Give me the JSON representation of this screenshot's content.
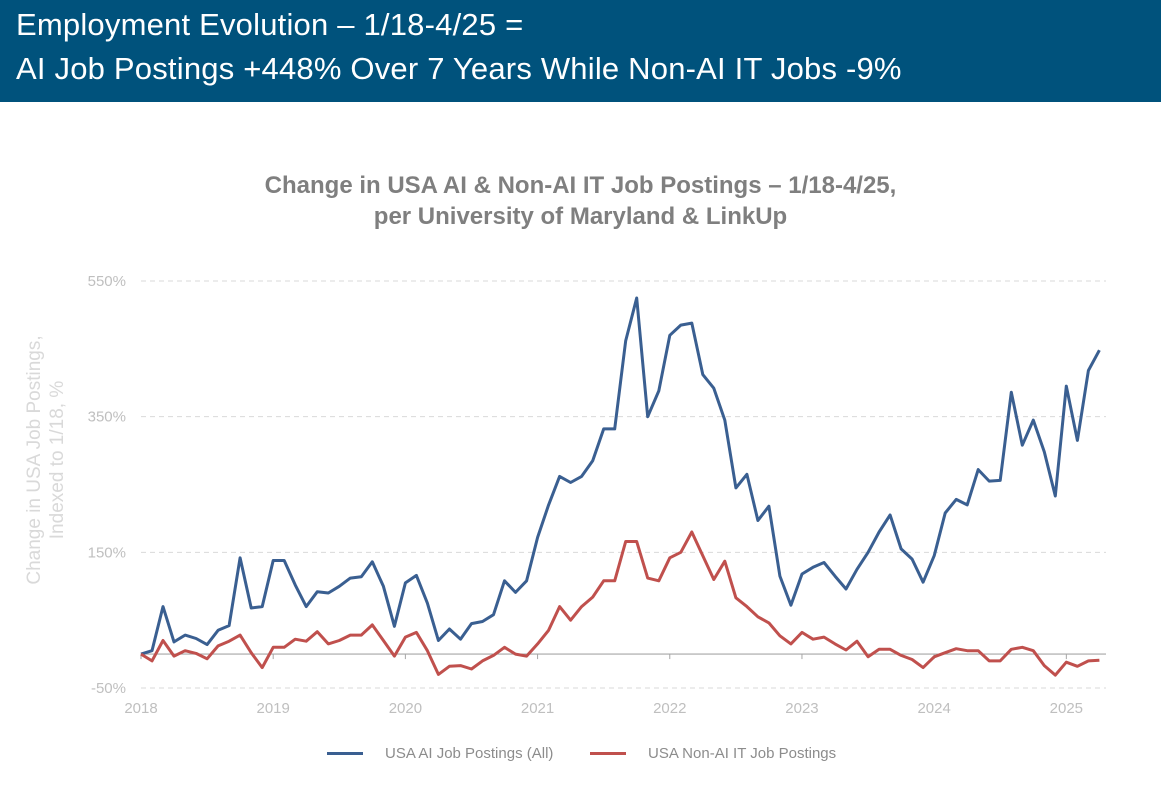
{
  "header": {
    "title_line1": "Employment Evolution – 1/18-4/25 =",
    "title_line2": "AI Job Postings +448% Over 7 Years While Non-AI IT Jobs -9%",
    "background": "#00527c"
  },
  "chart_data": {
    "type": "line",
    "title_line1": "Change in USA AI & Non-AI IT Job Postings – 1/18-4/25,",
    "title_line2": "per University of Maryland & LinkUp",
    "ylabel_line1": "Change in USA Job Postings,",
    "ylabel_line2": "Indexed to 1/18, %",
    "ylim": [
      -50,
      550
    ],
    "yticks": [
      -50,
      150,
      350,
      550
    ],
    "ytick_labels": [
      "-50%",
      "150%",
      "350%",
      "550%"
    ],
    "xticks": [
      2018,
      2019,
      2020,
      2021,
      2022,
      2023,
      2024,
      2025
    ],
    "xtick_labels": [
      "2018",
      "2019",
      "2020",
      "2021",
      "2022",
      "2023",
      "2024",
      "2025"
    ],
    "xlim": [
      2018,
      2025.3
    ],
    "grid": "horizontal dashed",
    "legend_position": "bottom",
    "series": [
      {
        "name": "USA AI Job Postings (All)",
        "color": "#3a5f91",
        "x": [
          "2018-01",
          "2018-02",
          "2018-03",
          "2018-04",
          "2018-05",
          "2018-06",
          "2018-07",
          "2018-08",
          "2018-09",
          "2018-10",
          "2018-11",
          "2018-12",
          "2019-01",
          "2019-02",
          "2019-03",
          "2019-04",
          "2019-05",
          "2019-06",
          "2019-07",
          "2019-08",
          "2019-09",
          "2019-10",
          "2019-11",
          "2019-12",
          "2020-01",
          "2020-02",
          "2020-03",
          "2020-04",
          "2020-05",
          "2020-06",
          "2020-07",
          "2020-08",
          "2020-09",
          "2020-10",
          "2020-11",
          "2020-12",
          "2021-01",
          "2021-02",
          "2021-03",
          "2021-04",
          "2021-05",
          "2021-06",
          "2021-07",
          "2021-08",
          "2021-09",
          "2021-10",
          "2021-11",
          "2021-12",
          "2022-01",
          "2022-02",
          "2022-03",
          "2022-04",
          "2022-05",
          "2022-06",
          "2022-07",
          "2022-08",
          "2022-09",
          "2022-10",
          "2022-11",
          "2022-12",
          "2023-01",
          "2023-02",
          "2023-03",
          "2023-04",
          "2023-05",
          "2023-06",
          "2023-07",
          "2023-08",
          "2023-09",
          "2023-10",
          "2023-11",
          "2023-12",
          "2024-01",
          "2024-02",
          "2024-03",
          "2024-04",
          "2024-05",
          "2024-06",
          "2024-07",
          "2024-08",
          "2024-09",
          "2024-10",
          "2024-11",
          "2024-12",
          "2025-01",
          "2025-02",
          "2025-03",
          "2025-04"
        ],
        "values": [
          0,
          5,
          70,
          18,
          28,
          23,
          14,
          35,
          42,
          142,
          68,
          70,
          138,
          138,
          102,
          70,
          92,
          90,
          100,
          112,
          114,
          136,
          100,
          41,
          105,
          116,
          75,
          20,
          37,
          22,
          45,
          48,
          58,
          108,
          91,
          108,
          172,
          220,
          262,
          253,
          262,
          285,
          332,
          332,
          462,
          525,
          350,
          388,
          470,
          485,
          488,
          412,
          392,
          345,
          245,
          265,
          197,
          218,
          115,
          72,
          118,
          128,
          135,
          115,
          96,
          125,
          150,
          180,
          205,
          155,
          140,
          106,
          145,
          208,
          228,
          220,
          272,
          255,
          256,
          386,
          308,
          345,
          298,
          233,
          395,
          315,
          418,
          448
        ]
      },
      {
        "name": "USA Non-AI IT Job Postings",
        "color": "#c0504d",
        "x": [
          "2018-01",
          "2018-02",
          "2018-03",
          "2018-04",
          "2018-05",
          "2018-06",
          "2018-07",
          "2018-08",
          "2018-09",
          "2018-10",
          "2018-11",
          "2018-12",
          "2019-01",
          "2019-02",
          "2019-03",
          "2019-04",
          "2019-05",
          "2019-06",
          "2019-07",
          "2019-08",
          "2019-09",
          "2019-10",
          "2019-11",
          "2019-12",
          "2020-01",
          "2020-02",
          "2020-03",
          "2020-04",
          "2020-05",
          "2020-06",
          "2020-07",
          "2020-08",
          "2020-09",
          "2020-10",
          "2020-11",
          "2020-12",
          "2021-01",
          "2021-02",
          "2021-03",
          "2021-04",
          "2021-05",
          "2021-06",
          "2021-07",
          "2021-08",
          "2021-09",
          "2021-10",
          "2021-11",
          "2021-12",
          "2022-01",
          "2022-02",
          "2022-03",
          "2022-04",
          "2022-05",
          "2022-06",
          "2022-07",
          "2022-08",
          "2022-09",
          "2022-10",
          "2022-11",
          "2022-12",
          "2023-01",
          "2023-02",
          "2023-03",
          "2023-04",
          "2023-05",
          "2023-06",
          "2023-07",
          "2023-08",
          "2023-09",
          "2023-10",
          "2023-11",
          "2023-12",
          "2024-01",
          "2024-02",
          "2024-03",
          "2024-04",
          "2024-05",
          "2024-06",
          "2024-07",
          "2024-08",
          "2024-09",
          "2024-10",
          "2024-11",
          "2024-12",
          "2025-01",
          "2025-02",
          "2025-03",
          "2025-04"
        ],
        "values": [
          0,
          -10,
          20,
          -3,
          5,
          1,
          -7,
          12,
          19,
          28,
          2,
          -20,
          10,
          10,
          22,
          19,
          33,
          15,
          20,
          28,
          28,
          43,
          20,
          -3,
          25,
          32,
          5,
          -30,
          -18,
          -17,
          -22,
          -10,
          -2,
          10,
          0,
          -3,
          15,
          35,
          70,
          50,
          70,
          84,
          108,
          108,
          166,
          166,
          112,
          108,
          142,
          150,
          180,
          145,
          110,
          137,
          83,
          70,
          55,
          46,
          27,
          15,
          32,
          22,
          25,
          15,
          6,
          19,
          -4,
          7,
          7,
          -2,
          -8,
          -20,
          -4,
          2,
          8,
          5,
          5,
          -10,
          -10,
          7,
          10,
          5,
          -17,
          -31,
          -12,
          -18,
          -10,
          -9
        ]
      }
    ]
  }
}
